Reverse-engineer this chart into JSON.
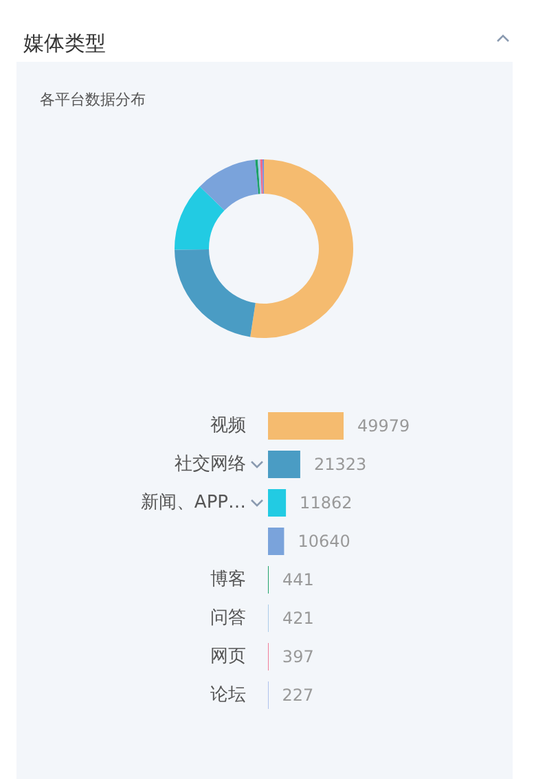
{
  "chart_data": [
    {
      "type": "donut",
      "title": "媒体类型",
      "subtitle": "各平台数据分布",
      "categories": [
        null,
        null,
        null,
        null,
        null,
        null,
        null,
        null
      ],
      "values": [
        52.44,
        22.38,
        12.45,
        11.17,
        0.46,
        0.44,
        0.42,
        0.24
      ],
      "colors": [
        "#f5bb6f",
        "#4a9cc4",
        "#22cbe3",
        "#7aa3db",
        "#1aa068",
        "#a6c8e8",
        "#f06a8a",
        "#6b8fe0"
      ]
    },
    {
      "type": "bar",
      "orientation": "horizontal",
      "categories": [
        "视频",
        "社交网络",
        "新闻、APP…",
        null,
        "博客",
        "问答",
        "网页",
        "论坛"
      ],
      "values": [
        49979,
        21323,
        11862,
        10640,
        441,
        421,
        397,
        227
      ],
      "colors": [
        "#f5bb6f",
        "#4a9cc4",
        "#22cbe3",
        "#7aa3db",
        "#1aa068",
        "#a6c8e8",
        "#f06a8a",
        "#6b8fe0"
      ],
      "data_labels": true
    }
  ]
}
